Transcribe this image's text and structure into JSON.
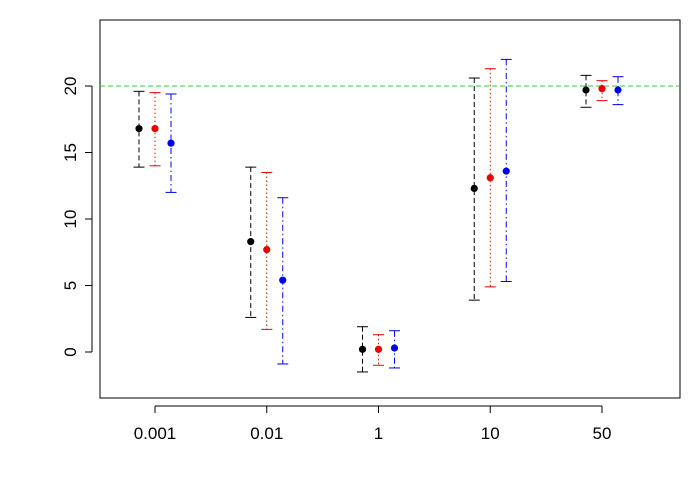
{
  "chart_data": {
    "type": "scatter",
    "subtype": "error-bar",
    "title": "",
    "xlabel": "",
    "ylabel": "",
    "categories": [
      "0.001",
      "0.01",
      "1",
      "10",
      "50"
    ],
    "ylim": [
      -3.5,
      25
    ],
    "yticks": [
      0,
      5,
      10,
      15,
      20
    ],
    "grid": false,
    "reference_line": {
      "y": 20,
      "color": "#33cc33",
      "style": "dashed"
    },
    "series": [
      {
        "color": "#000000",
        "line_style": "dashed",
        "points": [
          {
            "x": "0.001",
            "y": 16.8,
            "low": 13.9,
            "high": 19.6
          },
          {
            "x": "0.01",
            "y": 8.3,
            "low": 2.6,
            "high": 13.9
          },
          {
            "x": "1",
            "y": 0.2,
            "low": -1.5,
            "high": 1.9
          },
          {
            "x": "10",
            "y": 12.3,
            "low": 3.9,
            "high": 20.6
          },
          {
            "x": "50",
            "y": 19.7,
            "low": 18.4,
            "high": 20.8
          }
        ]
      },
      {
        "color": "#ee0000",
        "line_style": "dotted",
        "points": [
          {
            "x": "0.001",
            "y": 16.8,
            "low": 14.0,
            "high": 19.5
          },
          {
            "x": "0.01",
            "y": 7.7,
            "low": 1.7,
            "high": 13.5
          },
          {
            "x": "1",
            "y": 0.2,
            "low": -1.0,
            "high": 1.3
          },
          {
            "x": "10",
            "y": 13.1,
            "low": 4.9,
            "high": 21.3
          },
          {
            "x": "50",
            "y": 19.8,
            "low": 18.9,
            "high": 20.4
          }
        ]
      },
      {
        "color": "#0000ee",
        "line_style": "dashdot",
        "points": [
          {
            "x": "0.001",
            "y": 15.7,
            "low": 12.0,
            "high": 19.4
          },
          {
            "x": "0.01",
            "y": 5.4,
            "low": -0.9,
            "high": 11.6
          },
          {
            "x": "1",
            "y": 0.3,
            "low": -1.2,
            "high": 1.6
          },
          {
            "x": "10",
            "y": 13.6,
            "low": 5.3,
            "high": 22.0
          },
          {
            "x": "50",
            "y": 19.7,
            "low": 18.6,
            "high": 20.7
          }
        ]
      }
    ]
  }
}
